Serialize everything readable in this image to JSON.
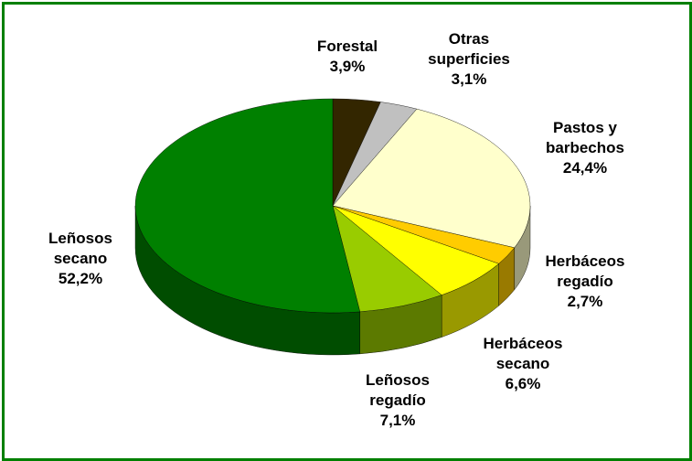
{
  "chart_data": {
    "type": "pie",
    "categories": [
      "Forestal",
      "Otras\nsuperficies",
      "Pastos y\nbarbechos",
      "Herbáceos\nregadío",
      "Herbáceos\nsecano",
      "Leñosos\nregadío",
      "Leñosos\nsecano"
    ],
    "values": [
      3.9,
      3.1,
      24.4,
      2.7,
      6.6,
      7.1,
      52.2
    ],
    "value_labels": [
      "3,9%",
      "3,1%",
      "24,4%",
      "2,7%",
      "6,6%",
      "7,1%",
      "52,2%"
    ],
    "colors": [
      "#332600",
      "#c0c0c0",
      "#ffffcc",
      "#ffcc00",
      "#ffff00",
      "#99cc00",
      "#008000"
    ]
  }
}
